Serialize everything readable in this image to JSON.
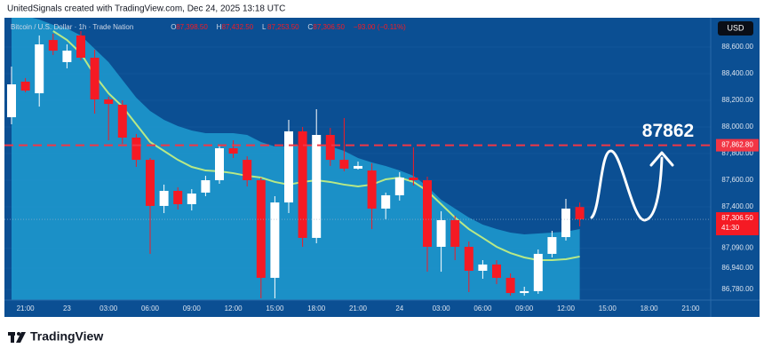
{
  "header": "UnitedSignals created with TradingView.com, Dec 24, 2025 13:18 UTC",
  "footer": "TradingView",
  "chart_data": {
    "type": "candlestick",
    "title": "Bitcoin / U.S. Dollar · 1h · Trade Nation",
    "ohlc_legend": [
      {
        "key": "O",
        "label": "87,398.50"
      },
      {
        "key": "H",
        "label": "87,432.50"
      },
      {
        "key": "L",
        "label": "87,253.50"
      },
      {
        "key": "C",
        "label": "87,306.50"
      }
    ],
    "change_label": "−93.00 (−0.11%)",
    "currency": "USD",
    "categories": [
      null,
      "21:00",
      null,
      null,
      "23",
      null,
      null,
      "03:00",
      null,
      null,
      "06:00",
      null,
      null,
      "09:00",
      null,
      null,
      "12:00",
      null,
      null,
      "15:00",
      null,
      null,
      "18:00",
      null,
      null,
      "21:00",
      null,
      null,
      "24",
      null,
      null,
      "03:00",
      null,
      null,
      "06:00",
      null,
      null,
      "09:00",
      null,
      null,
      "12:00",
      null,
      null,
      "15:00",
      null,
      null,
      "18:00",
      null,
      null,
      "21:00"
    ],
    "open": [
      88073,
      88340,
      88253,
      88653,
      88487,
      88687,
      88520,
      88207,
      88167,
      87920,
      87753,
      87407,
      87520,
      87420,
      87507,
      87600,
      87840,
      87753,
      87600,
      86867,
      87433,
      87967,
      87167,
      87940,
      87753,
      87687,
      87673,
      87387,
      87487,
      87620,
      87600,
      87100,
      87300,
      87100,
      86920,
      86967,
      86867,
      86753,
      86767,
      87047,
      87173,
      87398.5,
      null,
      null,
      null,
      null,
      null,
      null,
      null,
      null
    ],
    "high": [
      88453,
      88367,
      88687,
      88700,
      88620,
      88720,
      88580,
      88227,
      88200,
      87947,
      87767,
      87567,
      87547,
      87533,
      87633,
      87867,
      87900,
      87780,
      87620,
      87480,
      88053,
      88000,
      88133,
      87993,
      88067,
      87740,
      87727,
      87507,
      87660,
      87847,
      87627,
      87367,
      87333,
      87140,
      87000,
      87000,
      86900,
      86800,
      87080,
      87220,
      87460,
      87432.5,
      null,
      null,
      null,
      null,
      null,
      null,
      null,
      null
    ],
    "low": [
      88020,
      88260,
      88153,
      88540,
      88440,
      88500,
      88100,
      87900,
      87873,
      87700,
      87047,
      87353,
      87380,
      87373,
      87480,
      87573,
      87767,
      87553,
      86713,
      86713,
      87353,
      87100,
      87127,
      87707,
      87667,
      87680,
      87233,
      87307,
      87447,
      87560,
      86913,
      86913,
      87000,
      86760,
      86860,
      86820,
      86733,
      86733,
      86747,
      87020,
      87147,
      87253.5,
      null,
      null,
      null,
      null,
      null,
      null,
      null,
      null
    ],
    "close": [
      88320,
      88273,
      88620,
      88573,
      88573,
      88520,
      88207,
      88173,
      87920,
      87753,
      87407,
      87520,
      87420,
      87500,
      87600,
      87840,
      87800,
      87600,
      86867,
      87433,
      87967,
      87167,
      87940,
      87753,
      87687,
      87707,
      87387,
      87487,
      87620,
      87600,
      87100,
      87300,
      87100,
      86920,
      86967,
      86867,
      86753,
      86767,
      87047,
      87173,
      87387,
      87306.5,
      null,
      null,
      null,
      null,
      null,
      null,
      null,
      null
    ],
    "up_color": "#ffffff",
    "down_color": "#f51a24",
    "moving_average": {
      "color": "#b8e986",
      "values": [
        null,
        null,
        null,
        88720,
        88653,
        88553,
        88387,
        88253,
        88153,
        88020,
        87887,
        87820,
        87753,
        87700,
        87673,
        87667,
        87653,
        87633,
        87620,
        87587,
        87567,
        87587,
        87600,
        87587,
        87567,
        87553,
        87567,
        87607,
        87620,
        87587,
        87520,
        87420,
        87320,
        87233,
        87167,
        87100,
        87053,
        87020,
        87000,
        87000,
        87007,
        87027,
        null,
        null,
        null,
        null,
        null,
        null,
        null,
        null
      ]
    },
    "channel_upper": {
      "color": "#1f9bd0",
      "values": [
        88853,
        88833,
        88807,
        88767,
        88740,
        88687,
        88587,
        88487,
        88353,
        88220,
        88120,
        88053,
        88007,
        87973,
        87953,
        87953,
        87953,
        87940,
        87887,
        87853,
        87853,
        87867,
        87867,
        87853,
        87820,
        87767,
        87733,
        87707,
        87673,
        87633,
        87553,
        87453,
        87387,
        87320,
        87267,
        87233,
        87207,
        87193,
        87200,
        87207,
        87213,
        87233,
        null,
        null,
        null,
        null,
        null,
        null,
        null,
        null
      ]
    },
    "ylim": [
      86700,
      88820
    ],
    "yticks": [
      {
        "value": 88600,
        "label": "88,600.00"
      },
      {
        "value": 88400,
        "label": "88,400.00"
      },
      {
        "value": 88200,
        "label": "88,200.00"
      },
      {
        "value": 88000,
        "label": "88,000.00"
      },
      {
        "value": 87800,
        "label": "87,800.00"
      },
      {
        "value": 87600,
        "label": "87,600.00"
      },
      {
        "value": 87400,
        "label": "87,400.00"
      },
      {
        "value": 87090,
        "label": "87,090.00"
      },
      {
        "value": 86940,
        "label": "86,940.00"
      },
      {
        "value": 86780,
        "label": "86,780.00"
      }
    ],
    "hline": {
      "value": 87862.8,
      "label": "87,862.80",
      "color": "#f23645"
    },
    "annotation": "87862",
    "last_price": {
      "value": 87306.5,
      "label": "87,306.50",
      "countdown": "41:30"
    }
  }
}
